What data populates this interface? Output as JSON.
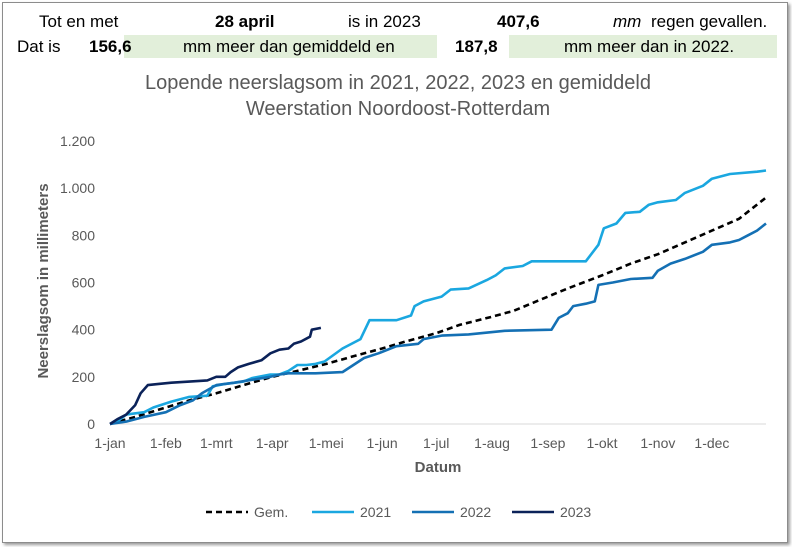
{
  "header": {
    "row1": {
      "t1": "Tot en met",
      "date": "28 april",
      "t2": "is in 2023",
      "total": "407,6",
      "unit": "mm",
      "t3": "regen gevallen."
    },
    "row2": {
      "t1": "Dat is",
      "diff_avg": "156,6",
      "t2": "mm meer dan gemiddeld en",
      "diff_2022": "187,8",
      "t3": "mm meer dan in 2022."
    }
  },
  "colors": {
    "gem": "#000000",
    "y2021": "#1aa7e0",
    "y2022": "#1470b4",
    "y2023": "#0b2259",
    "shade": "#e2efda",
    "text": "#595959",
    "axis": "#d9d9d9"
  },
  "chart_data": {
    "type": "line",
    "title": "Lopende neerslagsom in 2021, 2022, 2023 en gemiddeld",
    "subtitle": "Weerstation Noordoost-Rotterdam",
    "xlabel": "Datum",
    "ylabel": "Neerslagsom in millimeters",
    "ylim": [
      0,
      1200
    ],
    "yticks": [
      0,
      200,
      400,
      600,
      800,
      1000,
      1200
    ],
    "ytick_labels": [
      "0",
      "200",
      "400",
      "600",
      "800",
      "1.000",
      "1.200"
    ],
    "x_unit": "day of year",
    "xlim": [
      1,
      365
    ],
    "xticks": [
      1,
      32,
      60,
      91,
      121,
      152,
      182,
      213,
      244,
      274,
      305,
      335
    ],
    "xtick_labels": [
      "1-jan",
      "1-feb",
      "1-mrt",
      "1-apr",
      "1-mei",
      "1-jun",
      "1-jul",
      "1-aug",
      "1-sep",
      "1-okt",
      "1-nov",
      "1-dec"
    ],
    "grid": false,
    "legend": "bottom",
    "series": [
      {
        "name": "Gem.",
        "style": "dashed",
        "points": [
          [
            1,
            0
          ],
          [
            15,
            30
          ],
          [
            32,
            70
          ],
          [
            45,
            100
          ],
          [
            60,
            130
          ],
          [
            75,
            165
          ],
          [
            91,
            200
          ],
          [
            105,
            225
          ],
          [
            121,
            255
          ],
          [
            135,
            285
          ],
          [
            152,
            320
          ],
          [
            165,
            350
          ],
          [
            182,
            385
          ],
          [
            195,
            420
          ],
          [
            213,
            455
          ],
          [
            225,
            480
          ],
          [
            244,
            540
          ],
          [
            255,
            575
          ],
          [
            274,
            630
          ],
          [
            290,
            680
          ],
          [
            305,
            720
          ],
          [
            320,
            770
          ],
          [
            335,
            820
          ],
          [
            350,
            870
          ],
          [
            365,
            960
          ]
        ]
      },
      {
        "name": "2021",
        "style": "solid",
        "points": [
          [
            1,
            0
          ],
          [
            5,
            10
          ],
          [
            10,
            40
          ],
          [
            20,
            50
          ],
          [
            25,
            70
          ],
          [
            35,
            95
          ],
          [
            45,
            115
          ],
          [
            55,
            120
          ],
          [
            58,
            160
          ],
          [
            65,
            170
          ],
          [
            75,
            180
          ],
          [
            80,
            195
          ],
          [
            90,
            210
          ],
          [
            95,
            210
          ],
          [
            100,
            225
          ],
          [
            105,
            250
          ],
          [
            110,
            250
          ],
          [
            115,
            255
          ],
          [
            120,
            265
          ],
          [
            130,
            320
          ],
          [
            140,
            360
          ],
          [
            145,
            440
          ],
          [
            160,
            440
          ],
          [
            168,
            460
          ],
          [
            170,
            500
          ],
          [
            175,
            520
          ],
          [
            185,
            540
          ],
          [
            190,
            570
          ],
          [
            200,
            575
          ],
          [
            210,
            610
          ],
          [
            215,
            630
          ],
          [
            220,
            660
          ],
          [
            230,
            670
          ],
          [
            235,
            690
          ],
          [
            265,
            690
          ],
          [
            272,
            760
          ],
          [
            275,
            830
          ],
          [
            282,
            850
          ],
          [
            287,
            895
          ],
          [
            295,
            900
          ],
          [
            300,
            930
          ],
          [
            305,
            940
          ],
          [
            315,
            950
          ],
          [
            320,
            980
          ],
          [
            330,
            1010
          ],
          [
            335,
            1040
          ],
          [
            345,
            1060
          ],
          [
            360,
            1070
          ],
          [
            365,
            1075
          ]
        ]
      },
      {
        "name": "2022",
        "style": "solid",
        "points": [
          [
            1,
            0
          ],
          [
            10,
            10
          ],
          [
            20,
            30
          ],
          [
            32,
            50
          ],
          [
            40,
            80
          ],
          [
            47,
            100
          ],
          [
            52,
            130
          ],
          [
            60,
            165
          ],
          [
            70,
            175
          ],
          [
            90,
            200
          ],
          [
            95,
            210
          ],
          [
            100,
            215
          ],
          [
            115,
            215
          ],
          [
            130,
            220
          ],
          [
            142,
            280
          ],
          [
            150,
            300
          ],
          [
            160,
            330
          ],
          [
            172,
            340
          ],
          [
            175,
            360
          ],
          [
            185,
            375
          ],
          [
            200,
            380
          ],
          [
            220,
            395
          ],
          [
            246,
            400
          ],
          [
            250,
            450
          ],
          [
            255,
            470
          ],
          [
            258,
            500
          ],
          [
            265,
            510
          ],
          [
            270,
            520
          ],
          [
            272,
            590
          ],
          [
            280,
            600
          ],
          [
            290,
            615
          ],
          [
            302,
            620
          ],
          [
            305,
            650
          ],
          [
            312,
            680
          ],
          [
            320,
            700
          ],
          [
            330,
            730
          ],
          [
            335,
            760
          ],
          [
            345,
            770
          ],
          [
            350,
            780
          ],
          [
            355,
            800
          ],
          [
            360,
            820
          ],
          [
            365,
            850
          ]
        ]
      },
      {
        "name": "2023",
        "style": "solid",
        "points": [
          [
            1,
            0
          ],
          [
            5,
            20
          ],
          [
            10,
            40
          ],
          [
            15,
            80
          ],
          [
            18,
            130
          ],
          [
            22,
            165
          ],
          [
            28,
            170
          ],
          [
            35,
            175
          ],
          [
            45,
            180
          ],
          [
            55,
            185
          ],
          [
            60,
            200
          ],
          [
            65,
            200
          ],
          [
            68,
            220
          ],
          [
            72,
            240
          ],
          [
            78,
            255
          ],
          [
            85,
            270
          ],
          [
            90,
            300
          ],
          [
            95,
            315
          ],
          [
            100,
            320
          ],
          [
            103,
            340
          ],
          [
            107,
            350
          ],
          [
            112,
            370
          ],
          [
            113,
            400
          ],
          [
            118,
            407.6
          ]
        ]
      }
    ]
  }
}
